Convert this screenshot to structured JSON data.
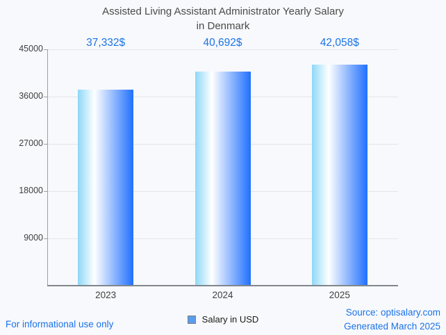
{
  "header": {
    "title_lines": [
      "Assisted Living Assistant Administrator Yearly Salary",
      "in Denmark"
    ]
  },
  "chart_data": {
    "type": "bar",
    "title": "Assisted Living Assistant Administrator Yearly Salary in Denmark",
    "categories": [
      "2023",
      "2024",
      "2025"
    ],
    "values": [
      37332,
      40692,
      42058
    ],
    "value_labels": [
      "37,332$",
      "40,692$",
      "42,058$"
    ],
    "series_name": "Salary in USD",
    "xlabel": "",
    "ylabel": "",
    "yticks": [
      9000,
      18000,
      27000,
      36000,
      45000
    ],
    "ylim": [
      0,
      45000
    ],
    "grid": "horizontal",
    "legend_position": "bottom-center"
  },
  "legend": {
    "label": "Salary in USD",
    "marker": "square-icon"
  },
  "footer": {
    "disclaimer": "For informational use only",
    "source": "Source: optisalary.com",
    "generated": "Generated March 2025"
  },
  "colors": {
    "background": "#f8f9fc",
    "accent_blue": "#1a73e8",
    "text_dark": "#4a4a4a",
    "bar_gradient_left": "#8dd8f7",
    "bar_gradient_mid": "#ffffff",
    "bar_gradient_right": "#2070fd",
    "legend_marker_fill": "#5c9cec",
    "legend_marker_border": "#808080",
    "grid_line": "#e3e5e8",
    "axis_line": "#9aa0a6",
    "x_axis_line": "#80868b"
  }
}
